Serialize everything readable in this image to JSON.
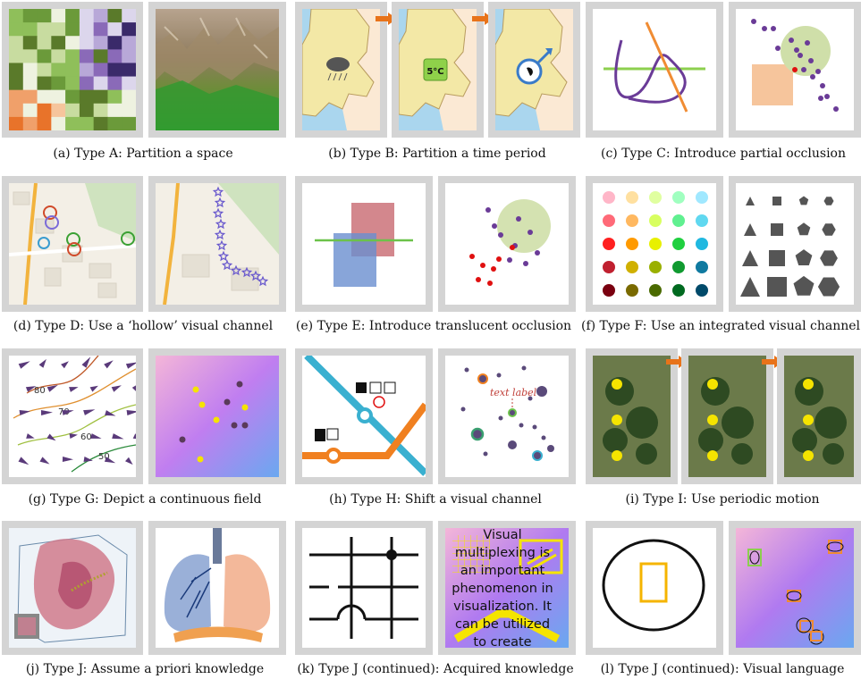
{
  "captions": {
    "a": "(a) Type A: Partition a space",
    "b": "(b) Type B: Partition a time period",
    "c": "(c) Type C: Introduce partial occlusion",
    "d": "(d) Type D: Use a ‘hollow’ visual channel",
    "e": "(e) Type E: Introduce translucent occlusion",
    "f": "(f) Type F: Use an integrated visual channel",
    "g": "(g) Type G: Depict a continuous field",
    "h": "(h) Type H: Shift a visual channel",
    "i": "(i) Type I: Use periodic motion",
    "j": "(j) Type J: Assume a priori knowledge",
    "k": "(k) Type J (continued): Acquired knowledge",
    "l": "(l) Type J (continued): Visual language"
  },
  "labels": {
    "temperature": "5°C",
    "contour_80": "80",
    "contour_70": "70",
    "contour_60": "60",
    "contour_50": "50",
    "text_label": "text label",
    "multiplex_text": "Visual multiplexing is an important phenomenon in visualization. It can be utilized to create effective visual designs."
  },
  "colors": {
    "frame_gray": "#d4d4d4",
    "arrow_orange": "#e8731a",
    "purple": "#6a3b97",
    "orange": "#f08c33",
    "green": "#8ccf4e",
    "map_land": "#f3e8a6",
    "map_water": "#aad6ee",
    "yellow": "#f5e400"
  }
}
